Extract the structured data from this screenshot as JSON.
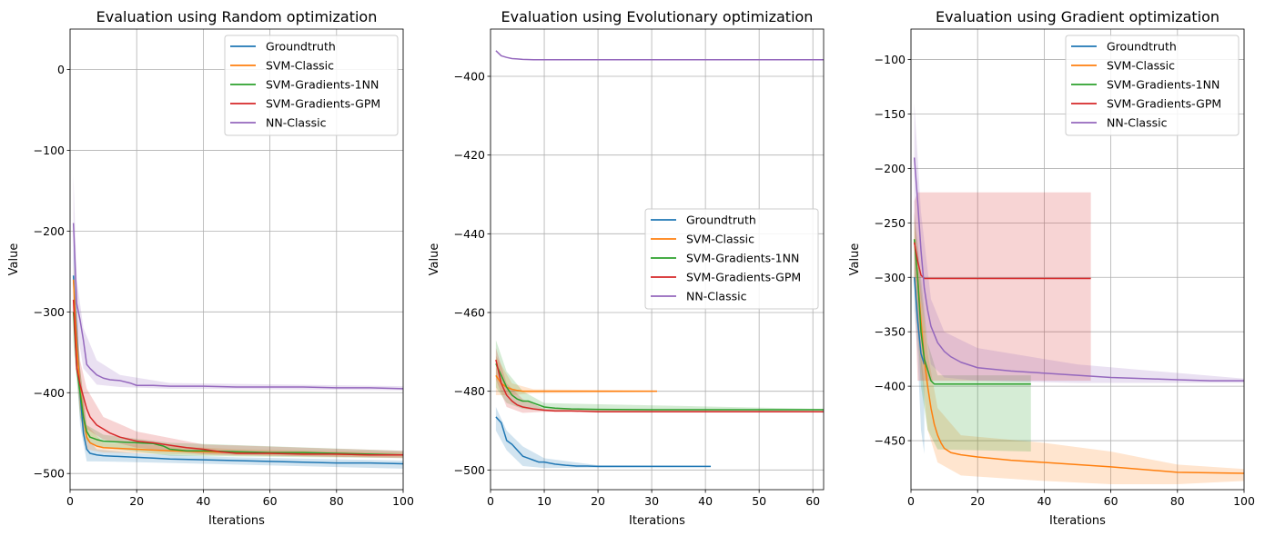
{
  "colors": {
    "Groundtruth": "#1f77b4",
    "SVM-Classic": "#ff7f0e",
    "SVM-Gradients-1NN": "#2ca02c",
    "SVM-Gradients-GPM": "#d62728",
    "NN-Classic": "#9467bd"
  },
  "chart_data": [
    {
      "type": "line",
      "title": "Evaluation using Random optimization",
      "xlabel": "Iterations",
      "ylabel": "Value",
      "xlim": [
        0,
        100
      ],
      "ylim": [
        -520,
        50
      ],
      "xticks": [
        0,
        20,
        40,
        60,
        80,
        100
      ],
      "yticks": [
        -500,
        -400,
        -300,
        -200,
        -100,
        0
      ],
      "grid": true,
      "legend": "upper right",
      "series": [
        {
          "name": "Groundtruth",
          "x": [
            1,
            2,
            3,
            4,
            5,
            6,
            8,
            10,
            15,
            20,
            25,
            30,
            40,
            50,
            60,
            70,
            80,
            90,
            100
          ],
          "y": [
            -255,
            -330,
            -400,
            -450,
            -470,
            -475,
            -477,
            -478,
            -479,
            -480,
            -481,
            -482,
            -483,
            -484,
            -485,
            -486,
            -487,
            -487,
            -488
          ],
          "band": [
            [
              1,
              -210,
              -300
            ],
            [
              3,
              -370,
              -440
            ],
            [
              5,
              -455,
              -485
            ],
            [
              8,
              -470,
              -485
            ],
            [
              20,
              -475,
              -486
            ],
            [
              50,
              -480,
              -489
            ],
            [
              100,
              -484,
              -494
            ]
          ]
        },
        {
          "name": "SVM-Classic",
          "x": [
            1,
            2,
            3,
            4,
            5,
            6,
            8,
            10,
            15,
            20,
            25,
            30,
            40,
            50,
            60,
            70,
            80,
            90,
            100
          ],
          "y": [
            -260,
            -340,
            -395,
            -430,
            -455,
            -462,
            -466,
            -468,
            -469,
            -470,
            -471,
            -472,
            -473,
            -474,
            -475,
            -475,
            -476,
            -477,
            -477
          ],
          "band": [
            [
              1,
              -240,
              -300
            ],
            [
              3,
              -370,
              -430
            ],
            [
              5,
              -440,
              -470
            ],
            [
              10,
              -462,
              -474
            ],
            [
              50,
              -470,
              -478
            ],
            [
              100,
              -474,
              -480
            ]
          ]
        },
        {
          "name": "SVM-Gradients-1NN",
          "x": [
            1,
            2,
            3,
            4,
            5,
            6,
            8,
            10,
            15,
            20,
            25,
            28,
            30,
            35,
            40,
            50,
            60,
            70,
            80,
            90,
            100
          ],
          "y": [
            -300,
            -370,
            -400,
            -430,
            -448,
            -455,
            -458,
            -460,
            -461,
            -462,
            -463,
            -466,
            -470,
            -472,
            -472,
            -473,
            -474,
            -474,
            -475,
            -476,
            -477
          ],
          "band": [
            [
              1,
              -270,
              -340
            ],
            [
              3,
              -370,
              -430
            ],
            [
              5,
              -440,
              -460
            ],
            [
              10,
              -452,
              -468
            ],
            [
              30,
              -462,
              -478
            ],
            [
              100,
              -472,
              -481
            ]
          ]
        },
        {
          "name": "SVM-Gradients-GPM",
          "x": [
            1,
            2,
            3,
            4,
            5,
            6,
            8,
            10,
            12,
            15,
            20,
            25,
            30,
            35,
            40,
            45,
            50,
            60,
            70,
            80,
            90,
            100
          ],
          "y": [
            -285,
            -370,
            -390,
            -405,
            -420,
            -430,
            -440,
            -445,
            -450,
            -455,
            -460,
            -462,
            -465,
            -468,
            -470,
            -473,
            -475,
            -475,
            -476,
            -476,
            -477,
            -477
          ],
          "band": [
            [
              1,
              -260,
              -320
            ],
            [
              3,
              -360,
              -420
            ],
            [
              5,
              -395,
              -445
            ],
            [
              10,
              -430,
              -458
            ],
            [
              20,
              -448,
              -468
            ],
            [
              40,
              -464,
              -476
            ],
            [
              100,
              -472,
              -481
            ]
          ]
        },
        {
          "name": "NN-Classic",
          "x": [
            1,
            2,
            3,
            4,
            5,
            6,
            8,
            10,
            12,
            15,
            18,
            20,
            25,
            30,
            40,
            50,
            60,
            70,
            80,
            90,
            100
          ],
          "y": [
            -190,
            -290,
            -310,
            -335,
            -365,
            -370,
            -378,
            -382,
            -384,
            -385,
            -388,
            -391,
            -391,
            -392,
            -392,
            -393,
            -393,
            -393,
            -394,
            -394,
            -395
          ],
          "band": [
            [
              1,
              -130,
              -240
            ],
            [
              2,
              -260,
              -320
            ],
            [
              4,
              -320,
              -370
            ],
            [
              8,
              -360,
              -390
            ],
            [
              15,
              -378,
              -393
            ],
            [
              30,
              -388,
              -395
            ],
            [
              100,
              -392,
              -397
            ]
          ]
        }
      ]
    },
    {
      "type": "line",
      "title": "Evaluation using Evolutionary optimization",
      "xlabel": "Iterations",
      "ylabel": "Value",
      "xlim": [
        0,
        62
      ],
      "ylim": [
        -505,
        -388
      ],
      "xticks": [
        0,
        10,
        20,
        30,
        40,
        50,
        60
      ],
      "yticks": [
        -500,
        -480,
        -460,
        -440,
        -420,
        -400
      ],
      "grid": true,
      "legend": "center right",
      "series": [
        {
          "name": "Groundtruth",
          "x": [
            1,
            2,
            3,
            4,
            5,
            6,
            7,
            8,
            9,
            10,
            12,
            14,
            16,
            18,
            20,
            25,
            30,
            35,
            41
          ],
          "y": [
            -486.5,
            -488,
            -492.5,
            -493.5,
            -495,
            -496.5,
            -497,
            -497.5,
            -498,
            -498,
            -498.5,
            -498.8,
            -499,
            -499,
            -499.1,
            -499.1,
            -499.1,
            -499.1,
            -499.1
          ],
          "band": [
            [
              1,
              -484,
              -490
            ],
            [
              3,
              -490,
              -495
            ],
            [
              6,
              -494,
              -499
            ],
            [
              10,
              -497,
              -499.5
            ],
            [
              20,
              -498.8,
              -499.4
            ],
            [
              41,
              -498.9,
              -499.3
            ]
          ]
        },
        {
          "name": "SVM-Classic",
          "x": [
            1,
            2,
            3,
            4,
            5,
            6,
            8,
            10,
            15,
            20,
            25,
            31
          ],
          "y": [
            -476,
            -478,
            -479,
            -479.5,
            -479.8,
            -480,
            -480,
            -480,
            -480,
            -480,
            -480,
            -480
          ],
          "band": [
            [
              1,
              -471,
              -481
            ],
            [
              4,
              -478,
              -481
            ],
            [
              8,
              -479.5,
              -480.5
            ],
            [
              31,
              -479.8,
              -480.2
            ]
          ]
        },
        {
          "name": "SVM-Gradients-1NN",
          "x": [
            1,
            2,
            3,
            4,
            5,
            6,
            7,
            8,
            9,
            10,
            12,
            15,
            20,
            30,
            40,
            50,
            62
          ],
          "y": [
            -473,
            -476,
            -479,
            -481,
            -482,
            -482.5,
            -482.5,
            -483,
            -483.5,
            -484,
            -484.3,
            -484.5,
            -484.6,
            -484.7,
            -484.7,
            -484.7,
            -484.7
          ],
          "band": [
            [
              1,
              -467,
              -479
            ],
            [
              3,
              -475,
              -483
            ],
            [
              6,
              -480,
              -484.5
            ],
            [
              10,
              -483,
              -485
            ],
            [
              62,
              -484.5,
              -485
            ]
          ]
        },
        {
          "name": "SVM-Gradients-GPM",
          "x": [
            1,
            2,
            3,
            4,
            5,
            6,
            8,
            10,
            12,
            15,
            20,
            30,
            40,
            50,
            62
          ],
          "y": [
            -472,
            -478,
            -481,
            -482.5,
            -483.5,
            -484,
            -484.5,
            -484.8,
            -485,
            -485,
            -485.2,
            -485.2,
            -485.2,
            -485.2,
            -485.2
          ],
          "band": [
            [
              1,
              -469,
              -477
            ],
            [
              3,
              -478,
              -484
            ],
            [
              6,
              -482,
              -485.5
            ],
            [
              10,
              -484.5,
              -485.2
            ],
            [
              62,
              -485,
              -485.4
            ]
          ]
        },
        {
          "name": "NN-Classic",
          "x": [
            1,
            2,
            3,
            4,
            5,
            6,
            8,
            10,
            15,
            20,
            30,
            40,
            50,
            62
          ],
          "y": [
            -393.5,
            -394.8,
            -395.2,
            -395.5,
            -395.6,
            -395.7,
            -395.8,
            -395.8,
            -395.8,
            -395.8,
            -395.8,
            -395.8,
            -395.8,
            -395.8
          ],
          "band": []
        }
      ]
    },
    {
      "type": "line",
      "title": "Evaluation using Gradient optimization",
      "xlabel": "Iterations",
      "ylabel": "Value",
      "xlim": [
        0,
        100
      ],
      "ylim": [
        -495,
        -72
      ],
      "xticks": [
        0,
        20,
        40,
        60,
        80,
        100
      ],
      "yticks": [
        -450,
        -400,
        -350,
        -300,
        -250,
        -200,
        -150,
        -100
      ],
      "grid": true,
      "legend": "upper right",
      "series": [
        {
          "name": "Groundtruth",
          "x": [
            1,
            2,
            3,
            4
          ],
          "y": [
            -300,
            -340,
            -370,
            -380
          ],
          "band": [
            [
              1,
              -270,
              -330
            ],
            [
              2,
              -320,
              -370
            ],
            [
              3,
              -370,
              -440
            ],
            [
              4,
              -400,
              -462
            ]
          ]
        },
        {
          "name": "SVM-Classic",
          "x": [
            1,
            2,
            3,
            4,
            5,
            6,
            7,
            8,
            9,
            10,
            12,
            15,
            20,
            30,
            40,
            60,
            80,
            100
          ],
          "y": [
            -265,
            -300,
            -340,
            -375,
            -400,
            -420,
            -435,
            -445,
            -452,
            -457,
            -461,
            -463,
            -465,
            -468,
            -470,
            -474,
            -479,
            -480
          ],
          "band": [
            [
              1,
              -240,
              -300
            ],
            [
              3,
              -310,
              -380
            ],
            [
              5,
              -370,
              -440
            ],
            [
              8,
              -420,
              -470
            ],
            [
              15,
              -445,
              -482
            ],
            [
              40,
              -452,
              -487
            ],
            [
              60,
              -460,
              -490
            ],
            [
              80,
              -472,
              -490
            ],
            [
              100,
              -476,
              -487
            ]
          ]
        },
        {
          "name": "SVM-Gradients-1NN",
          "x": [
            1,
            2,
            3,
            4,
            5,
            6,
            7,
            8,
            10,
            20,
            36
          ],
          "y": [
            -265,
            -300,
            -350,
            -375,
            -385,
            -395,
            -398,
            -398,
            -398,
            -398,
            -398
          ],
          "band": [
            [
              1,
              -240,
              -300
            ],
            [
              3,
              -300,
              -400
            ],
            [
              5,
              -360,
              -440
            ],
            [
              8,
              -390,
              -458
            ],
            [
              36,
              -390,
              -460
            ]
          ]
        },
        {
          "name": "SVM-Gradients-GPM",
          "x": [
            1,
            2,
            3,
            4,
            5,
            10,
            20,
            54
          ],
          "y": [
            -268,
            -285,
            -298,
            -301,
            -301,
            -301,
            -301,
            -301
          ],
          "band": [
            [
              1,
              -230,
              -300
            ],
            [
              2,
              -222,
              -395
            ],
            [
              54,
              -222,
              -395
            ]
          ]
        },
        {
          "name": "NN-Classic",
          "x": [
            1,
            2,
            3,
            4,
            5,
            6,
            8,
            10,
            12,
            15,
            20,
            30,
            40,
            50,
            60,
            70,
            80,
            90,
            100
          ],
          "y": [
            -190,
            -230,
            -275,
            -310,
            -330,
            -345,
            -360,
            -368,
            -373,
            -378,
            -383,
            -386,
            -388,
            -390,
            -392,
            -393,
            -394,
            -395,
            -395
          ],
          "band": [
            [
              1,
              -140,
              -250
            ],
            [
              3,
              -240,
              -320
            ],
            [
              6,
              -320,
              -380
            ],
            [
              10,
              -350,
              -392
            ],
            [
              20,
              -365,
              -395
            ],
            [
              50,
              -380,
              -397
            ],
            [
              100,
              -393,
              -397
            ]
          ]
        }
      ]
    }
  ]
}
